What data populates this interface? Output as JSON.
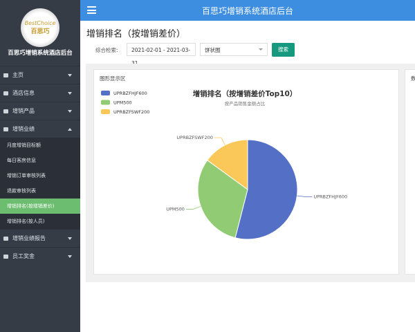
{
  "logo": {
    "brand": "BestChoice",
    "name": "百思巧"
  },
  "sidebar": {
    "title": "百思巧增销系统酒店后台",
    "menu": [
      "主页",
      "酒店信息",
      "增销产品",
      "增销业绩"
    ],
    "submenu": [
      "月度增销目标额",
      "每日客房信息",
      "增销订单审核列表",
      "退款审核列表",
      "增销排名(按增销差价)",
      "增销排名(按人员)"
    ],
    "menu_after": [
      "增销业绩报告",
      "员工奖金"
    ]
  },
  "header": {
    "title": "百思巧增销系统酒店后台"
  },
  "page": {
    "title": "增销排名（按增销差价）",
    "filter_label": "综合检索:",
    "date_range": "2021-02-01 - 2021-03-31",
    "chart_select": "饼状图",
    "search_button": "搜索",
    "panel_title": "图形显示区",
    "panel2_title": "数"
  },
  "chart_data": {
    "type": "pie",
    "title": "增销排名（按增销差价Top10）",
    "subtitle": "按产品销售金额占比",
    "categories": [
      "UPRBZFHJF600",
      "UPM500",
      "UPRBZFSWF200"
    ],
    "values": [
      54,
      31,
      15
    ],
    "colors": [
      "#5470c6",
      "#91cc75",
      "#fac858"
    ]
  }
}
